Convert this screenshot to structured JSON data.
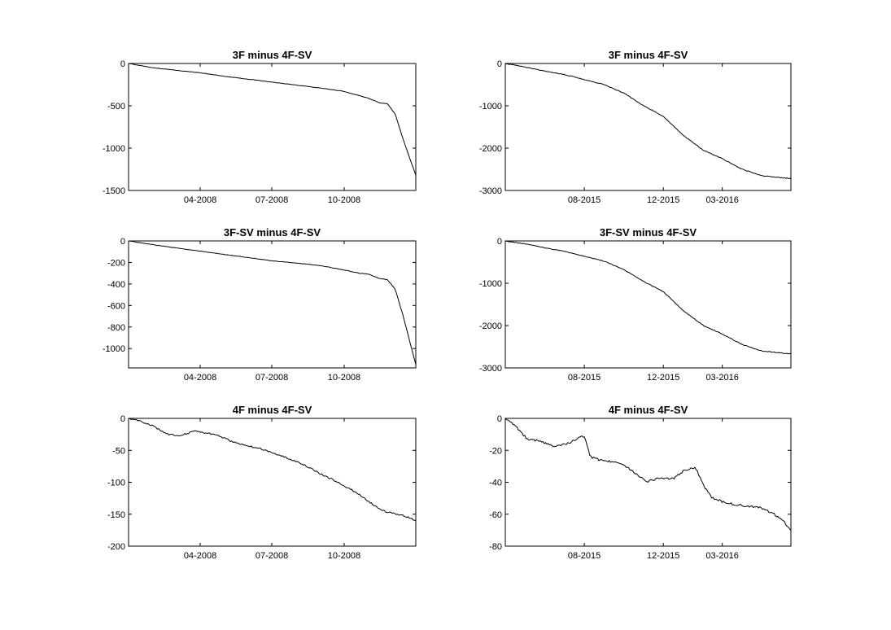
{
  "figure": {
    "background": "#ffffff",
    "line_color": "#000000"
  },
  "chart_data": [
    {
      "type": "line",
      "title": "3F minus 4F-SV",
      "xlabel": "",
      "ylabel": "",
      "xlim": [
        "2008-01-01",
        "2008-12-31"
      ],
      "ylim": [
        -1500,
        0
      ],
      "yticks": [
        0,
        -500,
        -1000,
        -1500
      ],
      "xticks": [
        {
          "date": "2008-04-01",
          "label": "04-2008"
        },
        {
          "date": "2008-07-01",
          "label": "07-2008"
        },
        {
          "date": "2008-10-01",
          "label": "10-2008"
        }
      ],
      "noise": 2,
      "series": [
        {
          "x": [
            "2008-01-01",
            "2008-02-01",
            "2008-03-01",
            "2008-04-01",
            "2008-05-01",
            "2008-06-01",
            "2008-07-01",
            "2008-08-01",
            "2008-09-01",
            "2008-10-01",
            "2008-10-20",
            "2008-11-01",
            "2008-11-15",
            "2008-11-25",
            "2008-12-05",
            "2008-12-15",
            "2008-12-31"
          ],
          "y": [
            0,
            -50,
            -80,
            -110,
            -150,
            -185,
            -220,
            -255,
            -290,
            -330,
            -380,
            -410,
            -465,
            -475,
            -600,
            -900,
            -1320
          ]
        }
      ]
    },
    {
      "type": "line",
      "title": "3F minus 4F-SV",
      "xlabel": "",
      "ylabel": "",
      "xlim": [
        "2015-04-01",
        "2016-06-15"
      ],
      "ylim": [
        -3000,
        0
      ],
      "yticks": [
        0,
        -1000,
        -2000,
        -3000
      ],
      "xticks": [
        {
          "date": "2015-08-01",
          "label": "08-2015"
        },
        {
          "date": "2015-12-01",
          "label": "12-2015"
        },
        {
          "date": "2016-03-01",
          "label": "03-2016"
        }
      ],
      "noise": 8,
      "series": [
        {
          "x": [
            "2015-04-01",
            "2015-05-01",
            "2015-06-01",
            "2015-07-01",
            "2015-08-01",
            "2015-09-01",
            "2015-10-01",
            "2015-11-01",
            "2015-12-01",
            "2016-01-01",
            "2016-02-01",
            "2016-03-01",
            "2016-04-01",
            "2016-05-01",
            "2016-06-15"
          ],
          "y": [
            0,
            -80,
            -180,
            -260,
            -380,
            -500,
            -700,
            -1000,
            -1250,
            -1700,
            -2050,
            -2250,
            -2500,
            -2650,
            -2720
          ]
        }
      ]
    },
    {
      "type": "line",
      "title": "3F-SV minus 4F-SV",
      "xlabel": "",
      "ylabel": "",
      "xlim": [
        "2008-01-01",
        "2008-12-31"
      ],
      "ylim": [
        -1180,
        0
      ],
      "yticks": [
        0,
        -200,
        -400,
        -600,
        -800,
        -1000
      ],
      "xticks": [
        {
          "date": "2008-04-01",
          "label": "04-2008"
        },
        {
          "date": "2008-07-01",
          "label": "07-2008"
        },
        {
          "date": "2008-10-01",
          "label": "10-2008"
        }
      ],
      "noise": 2,
      "series": [
        {
          "x": [
            "2008-01-01",
            "2008-02-01",
            "2008-03-01",
            "2008-04-01",
            "2008-05-01",
            "2008-06-01",
            "2008-07-01",
            "2008-08-01",
            "2008-09-01",
            "2008-10-01",
            "2008-10-20",
            "2008-11-01",
            "2008-11-15",
            "2008-11-25",
            "2008-12-05",
            "2008-12-15",
            "2008-12-31"
          ],
          "y": [
            0,
            -35,
            -65,
            -95,
            -125,
            -155,
            -185,
            -205,
            -230,
            -270,
            -300,
            -310,
            -350,
            -360,
            -450,
            -700,
            -1150
          ]
        }
      ]
    },
    {
      "type": "line",
      "title": "3F-SV minus 4F-SV",
      "xlabel": "",
      "ylabel": "",
      "xlim": [
        "2015-04-01",
        "2016-06-15"
      ],
      "ylim": [
        -3000,
        0
      ],
      "yticks": [
        0,
        -1000,
        -2000,
        -3000
      ],
      "xticks": [
        {
          "date": "2015-08-01",
          "label": "08-2015"
        },
        {
          "date": "2015-12-01",
          "label": "12-2015"
        },
        {
          "date": "2016-03-01",
          "label": "03-2016"
        }
      ],
      "noise": 8,
      "series": [
        {
          "x": [
            "2015-04-01",
            "2015-05-01",
            "2015-06-01",
            "2015-07-01",
            "2015-08-01",
            "2015-09-01",
            "2015-10-01",
            "2015-11-01",
            "2015-12-01",
            "2016-01-01",
            "2016-02-01",
            "2016-03-01",
            "2016-04-01",
            "2016-05-01",
            "2016-06-15"
          ],
          "y": [
            0,
            -70,
            -160,
            -250,
            -360,
            -480,
            -680,
            -960,
            -1200,
            -1650,
            -2000,
            -2200,
            -2450,
            -2600,
            -2670
          ]
        }
      ]
    },
    {
      "type": "line",
      "title": "4F minus 4F-SV",
      "xlabel": "",
      "ylabel": "",
      "xlim": [
        "2008-01-01",
        "2008-12-31"
      ],
      "ylim": [
        -200,
        0
      ],
      "yticks": [
        0,
        -50,
        -100,
        -150,
        -200
      ],
      "xticks": [
        {
          "date": "2008-04-01",
          "label": "04-2008"
        },
        {
          "date": "2008-07-01",
          "label": "07-2008"
        },
        {
          "date": "2008-10-01",
          "label": "10-2008"
        }
      ],
      "noise": 1.2,
      "series": [
        {
          "x": [
            "2008-01-01",
            "2008-01-10",
            "2008-02-01",
            "2008-02-20",
            "2008-03-05",
            "2008-03-25",
            "2008-04-20",
            "2008-05-15",
            "2008-06-15",
            "2008-07-10",
            "2008-08-10",
            "2008-09-01",
            "2008-09-20",
            "2008-10-15",
            "2008-11-01",
            "2008-11-20",
            "2008-12-15",
            "2008-12-31"
          ],
          "y": [
            0,
            -2,
            -12,
            -25,
            -27,
            -20,
            -25,
            -38,
            -47,
            -57,
            -72,
            -87,
            -98,
            -115,
            -130,
            -145,
            -152,
            -160
          ]
        }
      ]
    },
    {
      "type": "line",
      "title": "4F minus 4F-SV",
      "xlabel": "",
      "ylabel": "",
      "xlim": [
        "2015-04-01",
        "2016-06-15"
      ],
      "ylim": [
        -80,
        0
      ],
      "yticks": [
        0,
        -20,
        -40,
        -60,
        -80
      ],
      "xticks": [
        {
          "date": "2015-08-01",
          "label": "08-2015"
        },
        {
          "date": "2015-12-01",
          "label": "12-2015"
        },
        {
          "date": "2016-03-01",
          "label": "03-2016"
        }
      ],
      "noise": 0.7,
      "series": [
        {
          "x": [
            "2015-04-01",
            "2015-04-15",
            "2015-05-05",
            "2015-05-25",
            "2015-06-15",
            "2015-07-05",
            "2015-07-25",
            "2015-08-01",
            "2015-08-10",
            "2015-09-01",
            "2015-09-20",
            "2015-10-15",
            "2015-11-05",
            "2015-11-25",
            "2015-12-15",
            "2016-01-05",
            "2016-01-20",
            "2016-02-01",
            "2016-02-15",
            "2016-03-01",
            "2016-03-20",
            "2016-04-10",
            "2016-05-01",
            "2016-05-20",
            "2016-06-05",
            "2016-06-15"
          ],
          "y": [
            0,
            -4,
            -13,
            -14,
            -18,
            -16,
            -12,
            -11,
            -24,
            -27,
            -27,
            -33,
            -40,
            -37,
            -38,
            -32,
            -31,
            -42,
            -50,
            -52,
            -54,
            -55,
            -56,
            -60,
            -65,
            -70
          ]
        }
      ]
    }
  ]
}
